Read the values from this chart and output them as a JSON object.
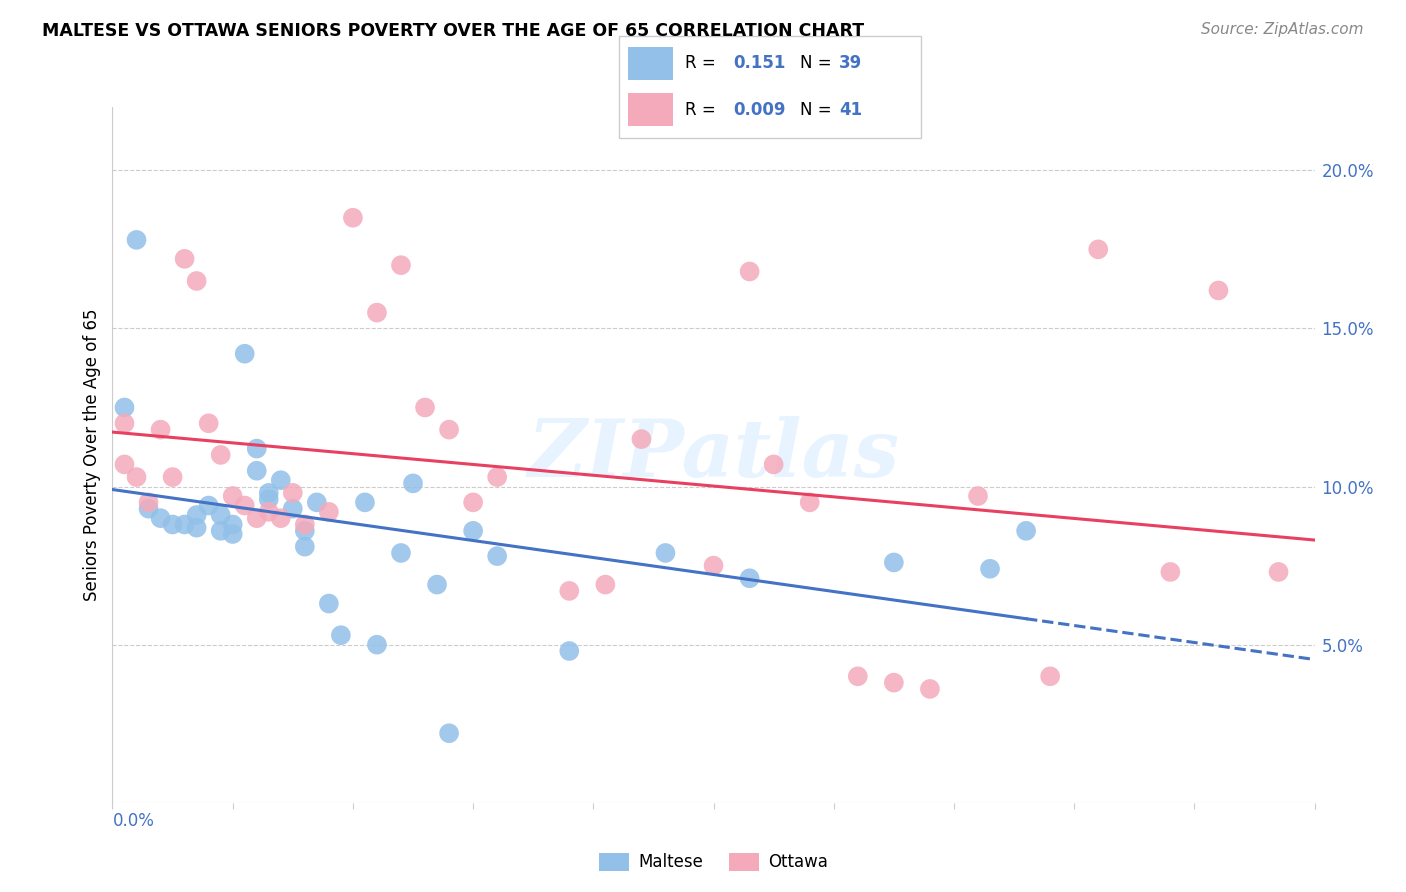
{
  "title": "MALTESE VS OTTAWA SENIORS POVERTY OVER THE AGE OF 65 CORRELATION CHART",
  "source": "Source: ZipAtlas.com",
  "ylabel": "Seniors Poverty Over the Age of 65",
  "xlim": [
    0.0,
    0.1
  ],
  "ylim": [
    0.0,
    0.22
  ],
  "xtick_left_label": "0.0%",
  "xtick_right_label": "10.0%",
  "ytick_labels": [
    "20.0%",
    "15.0%",
    "10.0%",
    "5.0%"
  ],
  "ytick_vals": [
    0.2,
    0.15,
    0.1,
    0.05
  ],
  "legend_maltese_r": "0.151",
  "legend_maltese_n": "39",
  "legend_ottawa_r": "0.009",
  "legend_ottawa_n": "41",
  "maltese_color": "#92C0E8",
  "ottawa_color": "#F4AABB",
  "trend_maltese_color": "#4472C4",
  "trend_ottawa_color": "#E84060",
  "watermark": "ZIPatlas",
  "maltese_x": [
    0.001,
    0.002,
    0.003,
    0.004,
    0.005,
    0.006,
    0.007,
    0.007,
    0.008,
    0.009,
    0.009,
    0.01,
    0.01,
    0.011,
    0.012,
    0.012,
    0.013,
    0.013,
    0.014,
    0.015,
    0.016,
    0.016,
    0.017,
    0.018,
    0.019,
    0.021,
    0.022,
    0.024,
    0.025,
    0.027,
    0.028,
    0.03,
    0.032,
    0.038,
    0.046,
    0.053,
    0.065,
    0.073,
    0.076
  ],
  "maltese_y": [
    0.125,
    0.178,
    0.093,
    0.09,
    0.088,
    0.088,
    0.091,
    0.087,
    0.094,
    0.091,
    0.086,
    0.088,
    0.085,
    0.142,
    0.112,
    0.105,
    0.096,
    0.098,
    0.102,
    0.093,
    0.086,
    0.081,
    0.095,
    0.063,
    0.053,
    0.095,
    0.05,
    0.079,
    0.101,
    0.069,
    0.022,
    0.086,
    0.078,
    0.048,
    0.079,
    0.071,
    0.076,
    0.074,
    0.086
  ],
  "ottawa_x": [
    0.001,
    0.001,
    0.002,
    0.003,
    0.004,
    0.005,
    0.006,
    0.007,
    0.008,
    0.009,
    0.01,
    0.011,
    0.012,
    0.013,
    0.014,
    0.015,
    0.016,
    0.018,
    0.02,
    0.022,
    0.024,
    0.026,
    0.028,
    0.03,
    0.032,
    0.038,
    0.041,
    0.044,
    0.05,
    0.053,
    0.055,
    0.058,
    0.062,
    0.065,
    0.068,
    0.072,
    0.078,
    0.082,
    0.088,
    0.092,
    0.097
  ],
  "ottawa_y": [
    0.107,
    0.12,
    0.103,
    0.095,
    0.118,
    0.103,
    0.172,
    0.165,
    0.12,
    0.11,
    0.097,
    0.094,
    0.09,
    0.092,
    0.09,
    0.098,
    0.088,
    0.092,
    0.185,
    0.155,
    0.17,
    0.125,
    0.118,
    0.095,
    0.103,
    0.067,
    0.069,
    0.115,
    0.075,
    0.168,
    0.107,
    0.095,
    0.04,
    0.038,
    0.036,
    0.097,
    0.04,
    0.175,
    0.073,
    0.162,
    0.073
  ]
}
